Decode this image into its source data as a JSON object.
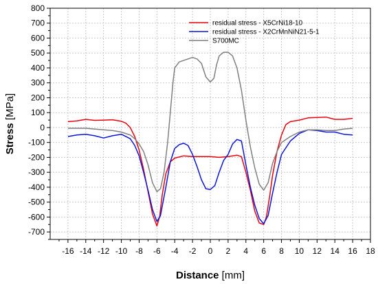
{
  "chart_data": {
    "type": "line",
    "title": "",
    "xlabel": {
      "bold": "Distance",
      "normal": " [mm]"
    },
    "ylabel": {
      "bold": "Stress",
      "normal": " [MPa]"
    },
    "xlim": [
      -18,
      18
    ],
    "ylim": [
      -750,
      800
    ],
    "xticks": [
      -16,
      -14,
      -12,
      -10,
      -8,
      -6,
      -4,
      -2,
      0,
      2,
      4,
      6,
      8,
      10,
      12,
      14,
      16,
      18
    ],
    "yticks": [
      -700,
      -600,
      -500,
      -400,
      -300,
      -200,
      -100,
      0,
      100,
      200,
      300,
      400,
      500,
      600,
      700,
      800
    ],
    "grid": true,
    "legend_position": "top-right",
    "series": [
      {
        "name": "residual stress - X5CrNi18-10",
        "color": "#e8000b",
        "points": [
          [
            -16,
            40
          ],
          [
            -15,
            45
          ],
          [
            -14,
            55
          ],
          [
            -13,
            48
          ],
          [
            -12,
            50
          ],
          [
            -11,
            52
          ],
          [
            -10,
            42
          ],
          [
            -9.5,
            30
          ],
          [
            -9,
            0
          ],
          [
            -8.5,
            -60
          ],
          [
            -8,
            -150
          ],
          [
            -7.5,
            -280
          ],
          [
            -7,
            -430
          ],
          [
            -6.5,
            -580
          ],
          [
            -6,
            -660
          ],
          [
            -5.7,
            -600
          ],
          [
            -5.4,
            -450
          ],
          [
            -5,
            -310
          ],
          [
            -4.5,
            -230
          ],
          [
            -4,
            -205
          ],
          [
            -3,
            -190
          ],
          [
            -2,
            -195
          ],
          [
            -1,
            -195
          ],
          [
            0,
            -195
          ],
          [
            1,
            -200
          ],
          [
            2,
            -195
          ],
          [
            3,
            -185
          ],
          [
            3.5,
            -195
          ],
          [
            4,
            -300
          ],
          [
            4.5,
            -420
          ],
          [
            5,
            -560
          ],
          [
            5.5,
            -640
          ],
          [
            6,
            -650
          ],
          [
            6.3,
            -600
          ],
          [
            6.7,
            -450
          ],
          [
            7,
            -320
          ],
          [
            7.5,
            -160
          ],
          [
            8,
            -50
          ],
          [
            8.5,
            20
          ],
          [
            9,
            40
          ],
          [
            10,
            50
          ],
          [
            11,
            65
          ],
          [
            12,
            68
          ],
          [
            13,
            70
          ],
          [
            14,
            55
          ],
          [
            15,
            55
          ],
          [
            16,
            62
          ]
        ]
      },
      {
        "name": "residual stress - X2CrMnNiN21-5-1",
        "color": "#0a14dc",
        "points": [
          [
            -16,
            -60
          ],
          [
            -15,
            -50
          ],
          [
            -14,
            -45
          ],
          [
            -13,
            -55
          ],
          [
            -12,
            -70
          ],
          [
            -11,
            -55
          ],
          [
            -10,
            -45
          ],
          [
            -9,
            -75
          ],
          [
            -8.5,
            -120
          ],
          [
            -8,
            -190
          ],
          [
            -7.5,
            -300
          ],
          [
            -7,
            -420
          ],
          [
            -6.5,
            -550
          ],
          [
            -6,
            -630
          ],
          [
            -5.6,
            -590
          ],
          [
            -5,
            -400
          ],
          [
            -4.5,
            -230
          ],
          [
            -4,
            -140
          ],
          [
            -3.5,
            -115
          ],
          [
            -3,
            -105
          ],
          [
            -2.5,
            -120
          ],
          [
            -2,
            -180
          ],
          [
            -1.5,
            -260
          ],
          [
            -1,
            -350
          ],
          [
            -0.5,
            -410
          ],
          [
            0,
            -415
          ],
          [
            0.5,
            -390
          ],
          [
            1,
            -300
          ],
          [
            1.5,
            -220
          ],
          [
            2,
            -180
          ],
          [
            2.5,
            -110
          ],
          [
            3,
            -80
          ],
          [
            3.5,
            -90
          ],
          [
            4,
            -250
          ],
          [
            4.5,
            -400
          ],
          [
            5,
            -520
          ],
          [
            5.5,
            -610
          ],
          [
            6,
            -645
          ],
          [
            6.5,
            -590
          ],
          [
            7,
            -440
          ],
          [
            7.5,
            -300
          ],
          [
            8,
            -180
          ],
          [
            9,
            -90
          ],
          [
            10,
            -40
          ],
          [
            11,
            -15
          ],
          [
            12,
            -20
          ],
          [
            13,
            -30
          ],
          [
            14,
            -30
          ],
          [
            15,
            -45
          ],
          [
            16,
            -50
          ]
        ]
      },
      {
        "name": "S700MC",
        "color": "#7f7f7f",
        "points": [
          [
            -16,
            -5
          ],
          [
            -15,
            -5
          ],
          [
            -14,
            -5
          ],
          [
            -13,
            -10
          ],
          [
            -12,
            -15
          ],
          [
            -11,
            -20
          ],
          [
            -10,
            -30
          ],
          [
            -9,
            -50
          ],
          [
            -8.5,
            -75
          ],
          [
            -8,
            -110
          ],
          [
            -7.5,
            -160
          ],
          [
            -7,
            -250
          ],
          [
            -6.5,
            -370
          ],
          [
            -6,
            -430
          ],
          [
            -5.6,
            -410
          ],
          [
            -5.2,
            -300
          ],
          [
            -4.8,
            -100
          ],
          [
            -4.5,
            100
          ],
          [
            -4.2,
            300
          ],
          [
            -4,
            400
          ],
          [
            -3.5,
            440
          ],
          [
            -3,
            450
          ],
          [
            -2.5,
            460
          ],
          [
            -2,
            470
          ],
          [
            -1.5,
            460
          ],
          [
            -1,
            430
          ],
          [
            -0.5,
            340
          ],
          [
            0,
            305
          ],
          [
            0.4,
            330
          ],
          [
            0.7,
            420
          ],
          [
            1,
            480
          ],
          [
            1.5,
            505
          ],
          [
            2,
            505
          ],
          [
            2.5,
            480
          ],
          [
            3,
            400
          ],
          [
            3.5,
            250
          ],
          [
            4,
            50
          ],
          [
            4.5,
            -130
          ],
          [
            5,
            -270
          ],
          [
            5.5,
            -380
          ],
          [
            6,
            -420
          ],
          [
            6.5,
            -370
          ],
          [
            7,
            -240
          ],
          [
            7.5,
            -160
          ],
          [
            8,
            -100
          ],
          [
            9,
            -60
          ],
          [
            10,
            -30
          ],
          [
            11,
            -15
          ],
          [
            12,
            -15
          ],
          [
            13,
            -20
          ],
          [
            14,
            -20
          ],
          [
            15,
            -10
          ],
          [
            16,
            -5
          ]
        ]
      }
    ]
  }
}
